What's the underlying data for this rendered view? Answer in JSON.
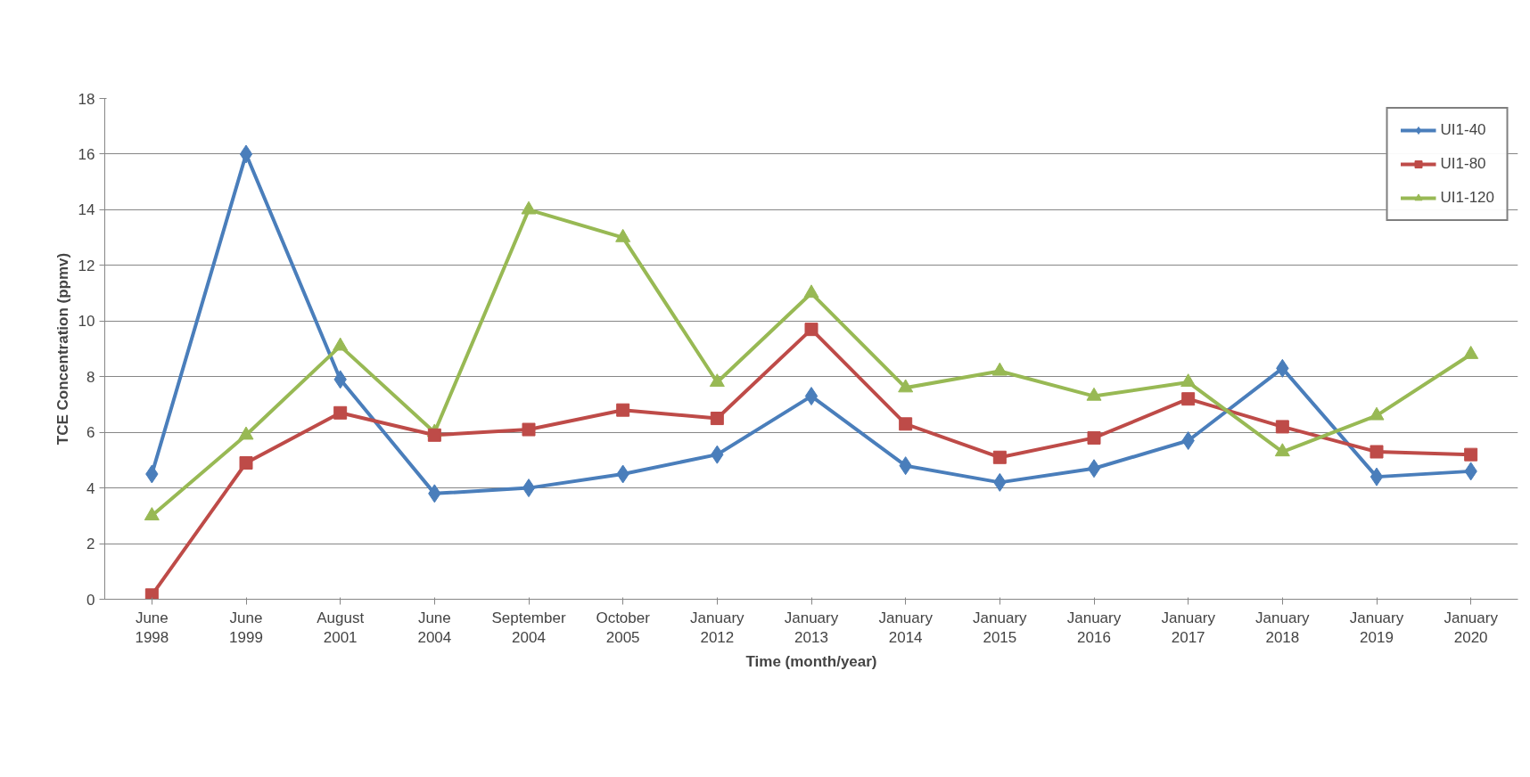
{
  "chart_data": {
    "type": "line",
    "xlabel": "Time (month/year)",
    "ylabel": "TCE Concentration (ppmv)",
    "categories": [
      "June 1998",
      "June 1999",
      "August 2001",
      "June 2004",
      "September 2004",
      "October 2005",
      "January 2012",
      "January 2013",
      "January 2014",
      "January 2015",
      "January 2016",
      "January 2017",
      "January 2018",
      "January 2019",
      "January 2020"
    ],
    "series": [
      {
        "name": "UI1-40",
        "color": "#4a7ebb",
        "marker": "diamond",
        "values": [
          4.5,
          16.0,
          7.9,
          3.8,
          4.0,
          4.5,
          5.2,
          7.3,
          4.8,
          4.2,
          4.7,
          5.7,
          8.3,
          4.4,
          4.6
        ]
      },
      {
        "name": "UI1-80",
        "color": "#be4b48",
        "marker": "square",
        "values": [
          0.15,
          4.9,
          6.7,
          5.9,
          6.1,
          6.8,
          6.5,
          9.7,
          6.3,
          5.1,
          5.8,
          7.2,
          6.2,
          5.3,
          5.2
        ]
      },
      {
        "name": "UI1-120",
        "color": "#98b954",
        "marker": "triangle",
        "values": [
          3.0,
          5.9,
          9.1,
          6.0,
          14.0,
          13.0,
          7.8,
          11.0,
          7.6,
          8.2,
          7.3,
          7.8,
          5.3,
          6.6,
          8.8
        ]
      }
    ],
    "ylim": [
      0,
      18
    ],
    "yticks": [
      0,
      2,
      4,
      6,
      8,
      10,
      12,
      14,
      16,
      18
    ],
    "grid": "y",
    "legend": "top right",
    "line_style": "solid"
  }
}
